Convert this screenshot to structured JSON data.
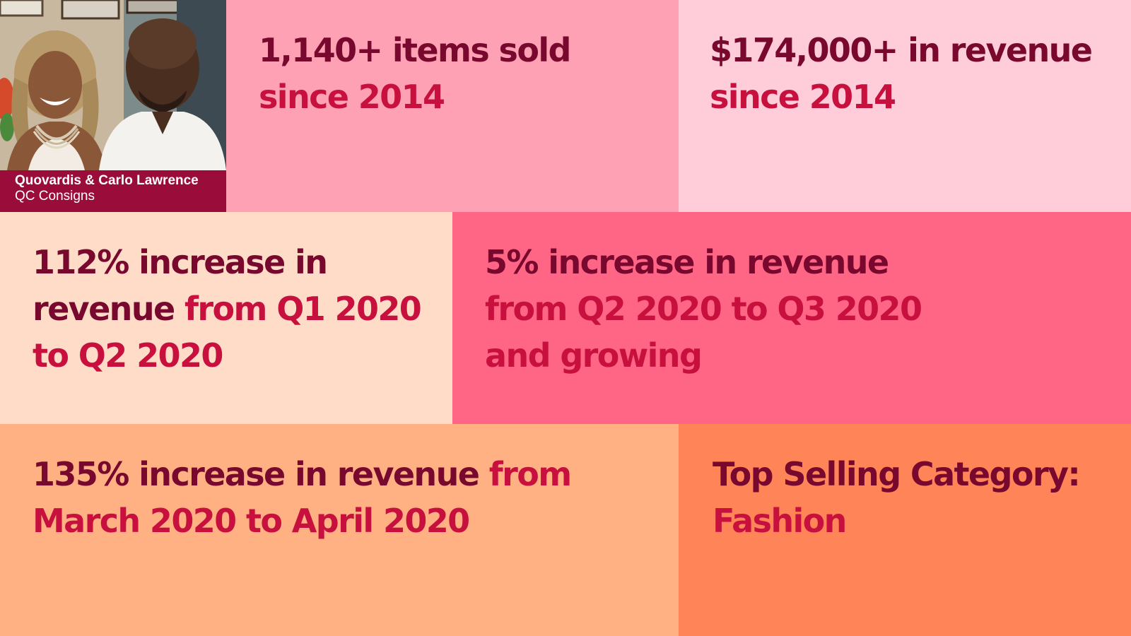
{
  "profile": {
    "names": "Quovardis & Carlo Lawrence",
    "company": "QC Consigns"
  },
  "stats": {
    "items_sold": {
      "line1": "1,140+ items sold",
      "line2": "since 2014"
    },
    "revenue_total": {
      "line1": "$174,000+ in revenue",
      "line2": "since 2014"
    },
    "q1_q2": {
      "line1": "112% increase in",
      "line2_dark": "revenue ",
      "line2_accent": "from Q1 2020",
      "line3": "to Q2 2020"
    },
    "q2_q3": {
      "line1": "5% increase in revenue",
      "line2": "from Q2 2020 to Q3 2020",
      "line3": "and growing"
    },
    "march_april": {
      "line1_dark": "135% increase in revenue ",
      "line1_accent": "from",
      "line2": "March 2020 to April 2020"
    },
    "category": {
      "line1": "Top Selling Category:",
      "line2": "Fashion"
    }
  },
  "colors": {
    "text_dark": "#78082e",
    "text_accent": "#c8103f",
    "caption_bg": "#9a0d3b",
    "tile_items": "#ffa1b5",
    "tile_revenue": "#ffcdd9",
    "tile_q1q2": "#ffdcc8",
    "tile_q2q3": "#ff6584",
    "tile_march_april": "#ffb183",
    "tile_category": "#ff8458"
  }
}
